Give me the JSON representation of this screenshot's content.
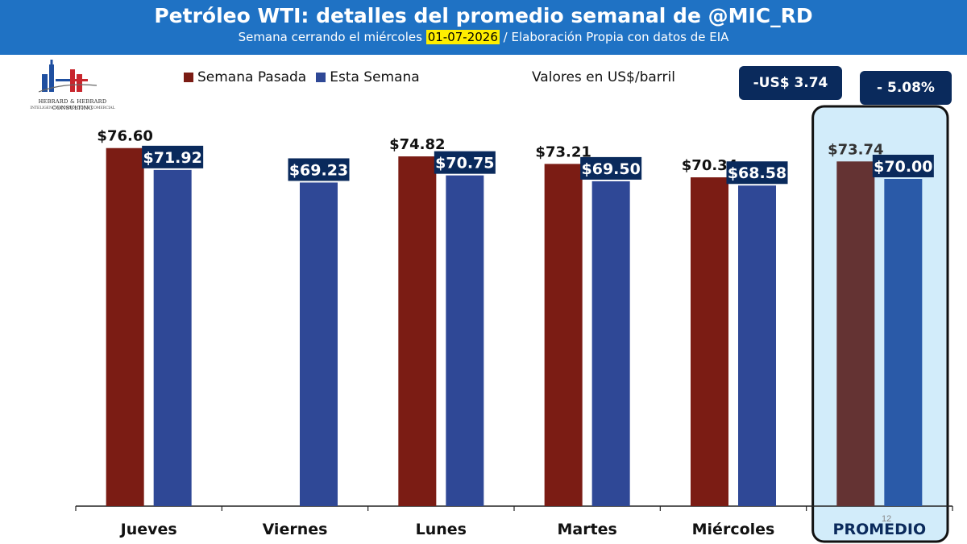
{
  "header": {
    "title": "Petróleo WTI: detalles del promedio semanal de @MIC_RD",
    "subtitle_before": "Semana cerrando el miércoles ",
    "subtitle_date": "01-07-2026",
    "subtitle_after": " / Elaboración Propia con datos de EIA"
  },
  "logo": {
    "name": "Hebrard & Hebrard Consulting",
    "tagline": "Inteligencia Económica & Comercial"
  },
  "units_label": "Valores en US$/barril",
  "change_abs": "-US$ 3.74",
  "change_pct": "- 5.08%",
  "page_number": "12",
  "colors": {
    "header_bg": "#1f72c4",
    "last_week": "#7b1c14",
    "this_week": "#2f4896",
    "avg_last_week": "#643333",
    "avg_this_week": "#2a5aa8",
    "highlight_bg": "#d2ecfa",
    "badge_bg": "#0a2a5c"
  },
  "chart_data": {
    "type": "bar",
    "categories": [
      "Jueves",
      "Viernes",
      "Lunes",
      "Martes",
      "Miércoles",
      "PROMEDIO"
    ],
    "series": [
      {
        "name": "Semana Pasada",
        "values": [
          76.6,
          null,
          74.82,
          73.21,
          70.34,
          73.74
        ],
        "labels": [
          "$76.60",
          "",
          "$74.82",
          "$73.21",
          "$70.34",
          "$73.74"
        ]
      },
      {
        "name": "Esta Semana",
        "values": [
          71.92,
          69.23,
          70.75,
          69.5,
          68.58,
          70.0
        ],
        "labels": [
          "$71.92",
          "$69.23",
          "$70.75",
          "$69.50",
          "$68.58",
          "$70.00"
        ]
      }
    ],
    "highlighted_category": "PROMEDIO",
    "legend_position": "top-left",
    "grid": false
  }
}
